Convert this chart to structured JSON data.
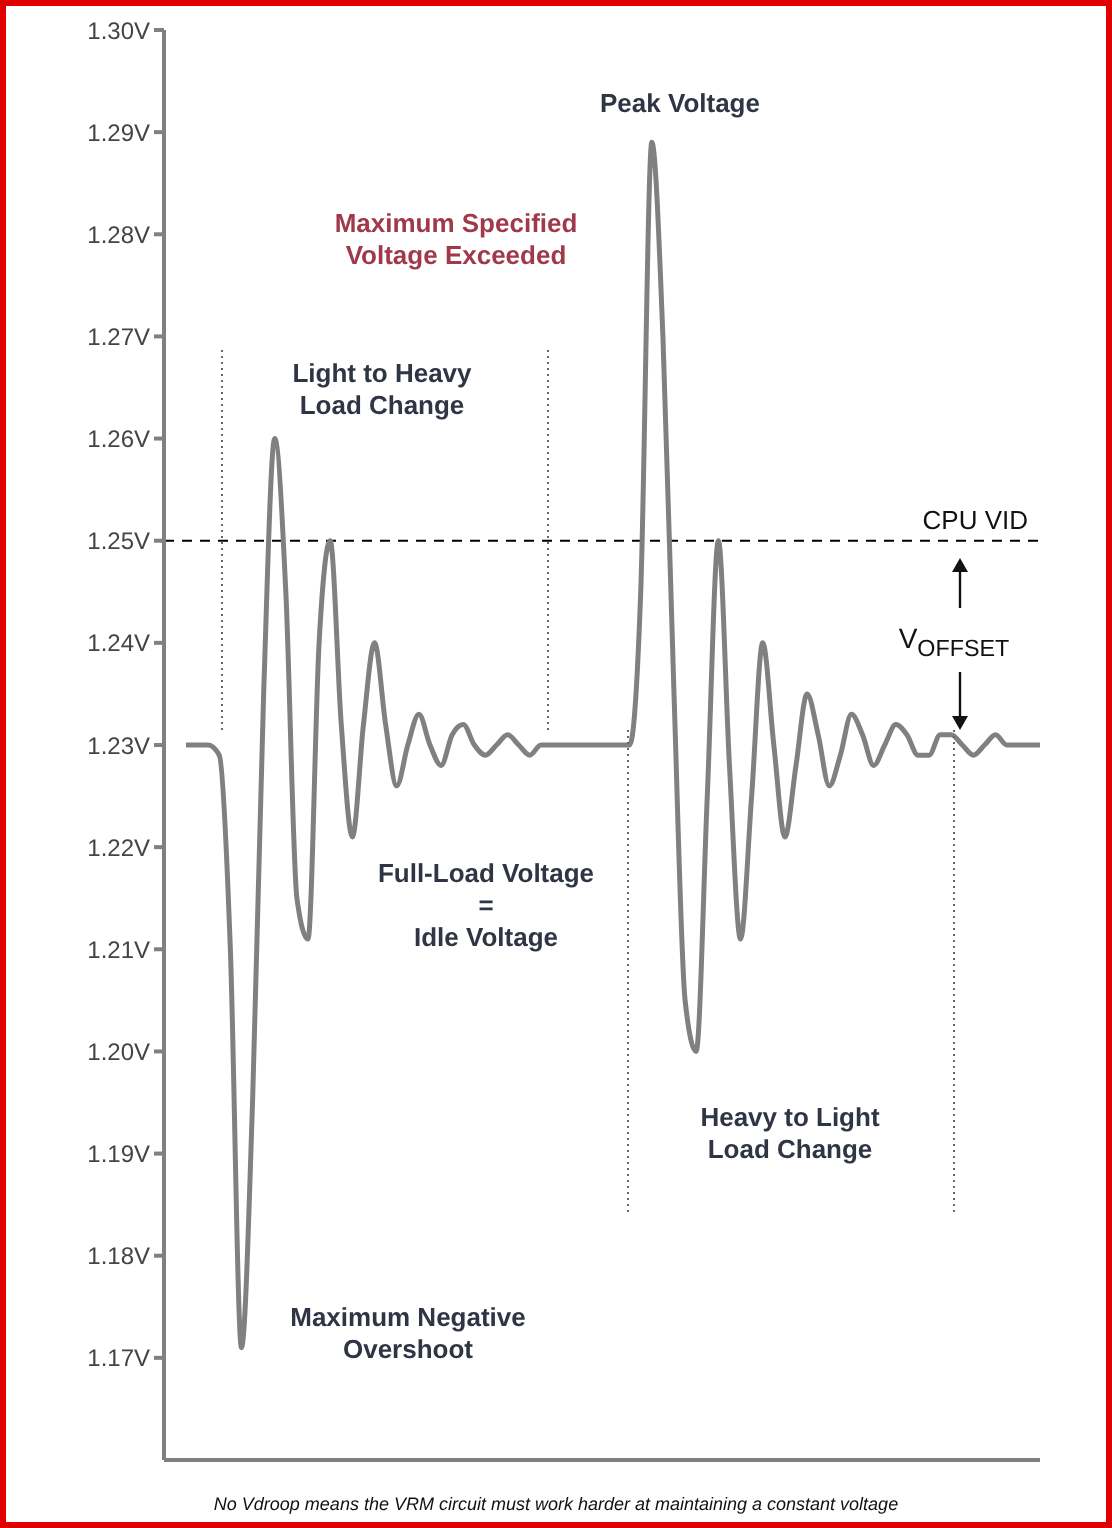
{
  "chart_data": {
    "type": "line",
    "categories": [
      null,
      null,
      null,
      null,
      null,
      null,
      null,
      null,
      null,
      null,
      null,
      null,
      null,
      null,
      null,
      null,
      null,
      null,
      null,
      null,
      null,
      null,
      null,
      null,
      null,
      null,
      null,
      null,
      null,
      null,
      null,
      null,
      null,
      null,
      null,
      null,
      null,
      null,
      null,
      null,
      null,
      null,
      null,
      null,
      null,
      null,
      null,
      null,
      null,
      null,
      null,
      null,
      null,
      null,
      null,
      null,
      null,
      null,
      null,
      null,
      null,
      null,
      null,
      null,
      null,
      null,
      null,
      null,
      null,
      null,
      null,
      null,
      null,
      null,
      null,
      null,
      null,
      null
    ],
    "series": [
      {
        "color": "#808080",
        "values": [
          1.23,
          1.23,
          1.23,
          1.229,
          1.21,
          1.171,
          1.195,
          1.235,
          1.26,
          1.245,
          1.215,
          1.211,
          1.24,
          1.25,
          1.232,
          1.221,
          1.232,
          1.24,
          1.232,
          1.226,
          1.23,
          1.233,
          1.23,
          1.228,
          1.231,
          1.232,
          1.23,
          1.229,
          1.23,
          1.231,
          1.23,
          1.229,
          1.23,
          1.23,
          1.23,
          1.23,
          1.23,
          1.23,
          1.23,
          1.23,
          1.23,
          1.245,
          1.289,
          1.27,
          1.235,
          1.205,
          1.2,
          1.225,
          1.25,
          1.228,
          1.211,
          1.225,
          1.24,
          1.23,
          1.221,
          1.228,
          1.235,
          1.231,
          1.226,
          1.229,
          1.233,
          1.231,
          1.228,
          1.23,
          1.232,
          1.231,
          1.229,
          1.229,
          1.231,
          1.231,
          1.23,
          1.229,
          1.23,
          1.231,
          1.23,
          1.23,
          1.23,
          1.23
        ]
      }
    ],
    "ylim": [
      1.16,
      1.3
    ],
    "yticks": [
      {
        "value": 1.17,
        "label": "1.17V"
      },
      {
        "value": 1.18,
        "label": "1.18V"
      },
      {
        "value": 1.19,
        "label": "1.19V"
      },
      {
        "value": 1.2,
        "label": "1.20V"
      },
      {
        "value": 1.21,
        "label": "1.21V"
      },
      {
        "value": 1.22,
        "label": "1.22V"
      },
      {
        "value": 1.23,
        "label": "1.23V"
      },
      {
        "value": 1.24,
        "label": "1.24V"
      },
      {
        "value": 1.25,
        "label": "1.25V"
      },
      {
        "value": 1.26,
        "label": "1.26V"
      },
      {
        "value": 1.27,
        "label": "1.27V"
      },
      {
        "value": 1.28,
        "label": "1.28V"
      },
      {
        "value": 1.29,
        "label": "1.29V"
      },
      {
        "value": 1.3,
        "label": "1.30V"
      }
    ],
    "tick_labels": "y",
    "grid": false,
    "legend": false,
    "marker": "none",
    "line_style": "solid",
    "ref_lines": [
      {
        "axis": "y",
        "value": 1.25,
        "label": "CPU VID",
        "color": "#000000",
        "line_style": "dashed"
      }
    ],
    "annotations": [
      "Peak Voltage",
      "Maximum Specified\nVoltage Exceeded",
      "Light to Heavy\nLoad Change",
      "V$_{OFFSET}$",
      "Full-Load Voltage\n=\nIdle Voltage",
      "Heavy to Light\nLoad Change",
      "Maximum Negative\nOvershoot",
      "No Vdroop means the VRM circuit must work harder at maintaining a constant voltage"
    ]
  }
}
